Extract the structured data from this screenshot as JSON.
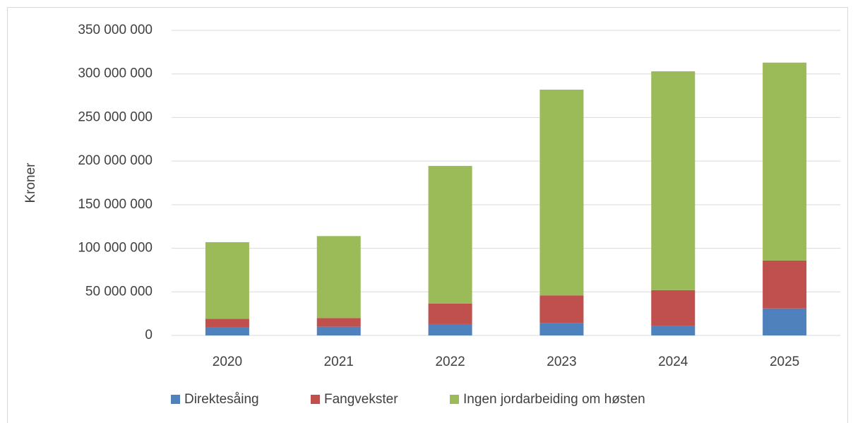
{
  "chart_data": {
    "type": "bar",
    "stacked": true,
    "y_label": "Kroner",
    "categories": [
      "2020",
      "2021",
      "2022",
      "2023",
      "2024",
      "2025"
    ],
    "series": [
      {
        "name": "Direktesåing",
        "color": "#4f81bd",
        "values": [
          9000000,
          10000000,
          13000000,
          14000000,
          11000000,
          31000000
        ]
      },
      {
        "name": "Fangvekster",
        "color": "#c0504d",
        "values": [
          10000000,
          10000000,
          23500000,
          32000000,
          41000000,
          55000000
        ]
      },
      {
        "name": "Ingen jordarbeiding om høsten",
        "color": "#9bbb59",
        "values": [
          88000000,
          94000000,
          158000000,
          236000000,
          251000000,
          227000000
        ]
      }
    ],
    "ylim": [
      0,
      350000000
    ],
    "yticks": [
      {
        "value": 0,
        "label": "0"
      },
      {
        "value": 50000000,
        "label": "50 000 000"
      },
      {
        "value": 100000000,
        "label": "100 000 000"
      },
      {
        "value": 150000000,
        "label": "150 000 000"
      },
      {
        "value": 200000000,
        "label": "200 000 000"
      },
      {
        "value": 250000000,
        "label": "250 000 000"
      },
      {
        "value": 300000000,
        "label": "300 000 000"
      },
      {
        "value": 350000000,
        "label": "350 000 000"
      }
    ],
    "grid": true,
    "legend": "bottom"
  }
}
